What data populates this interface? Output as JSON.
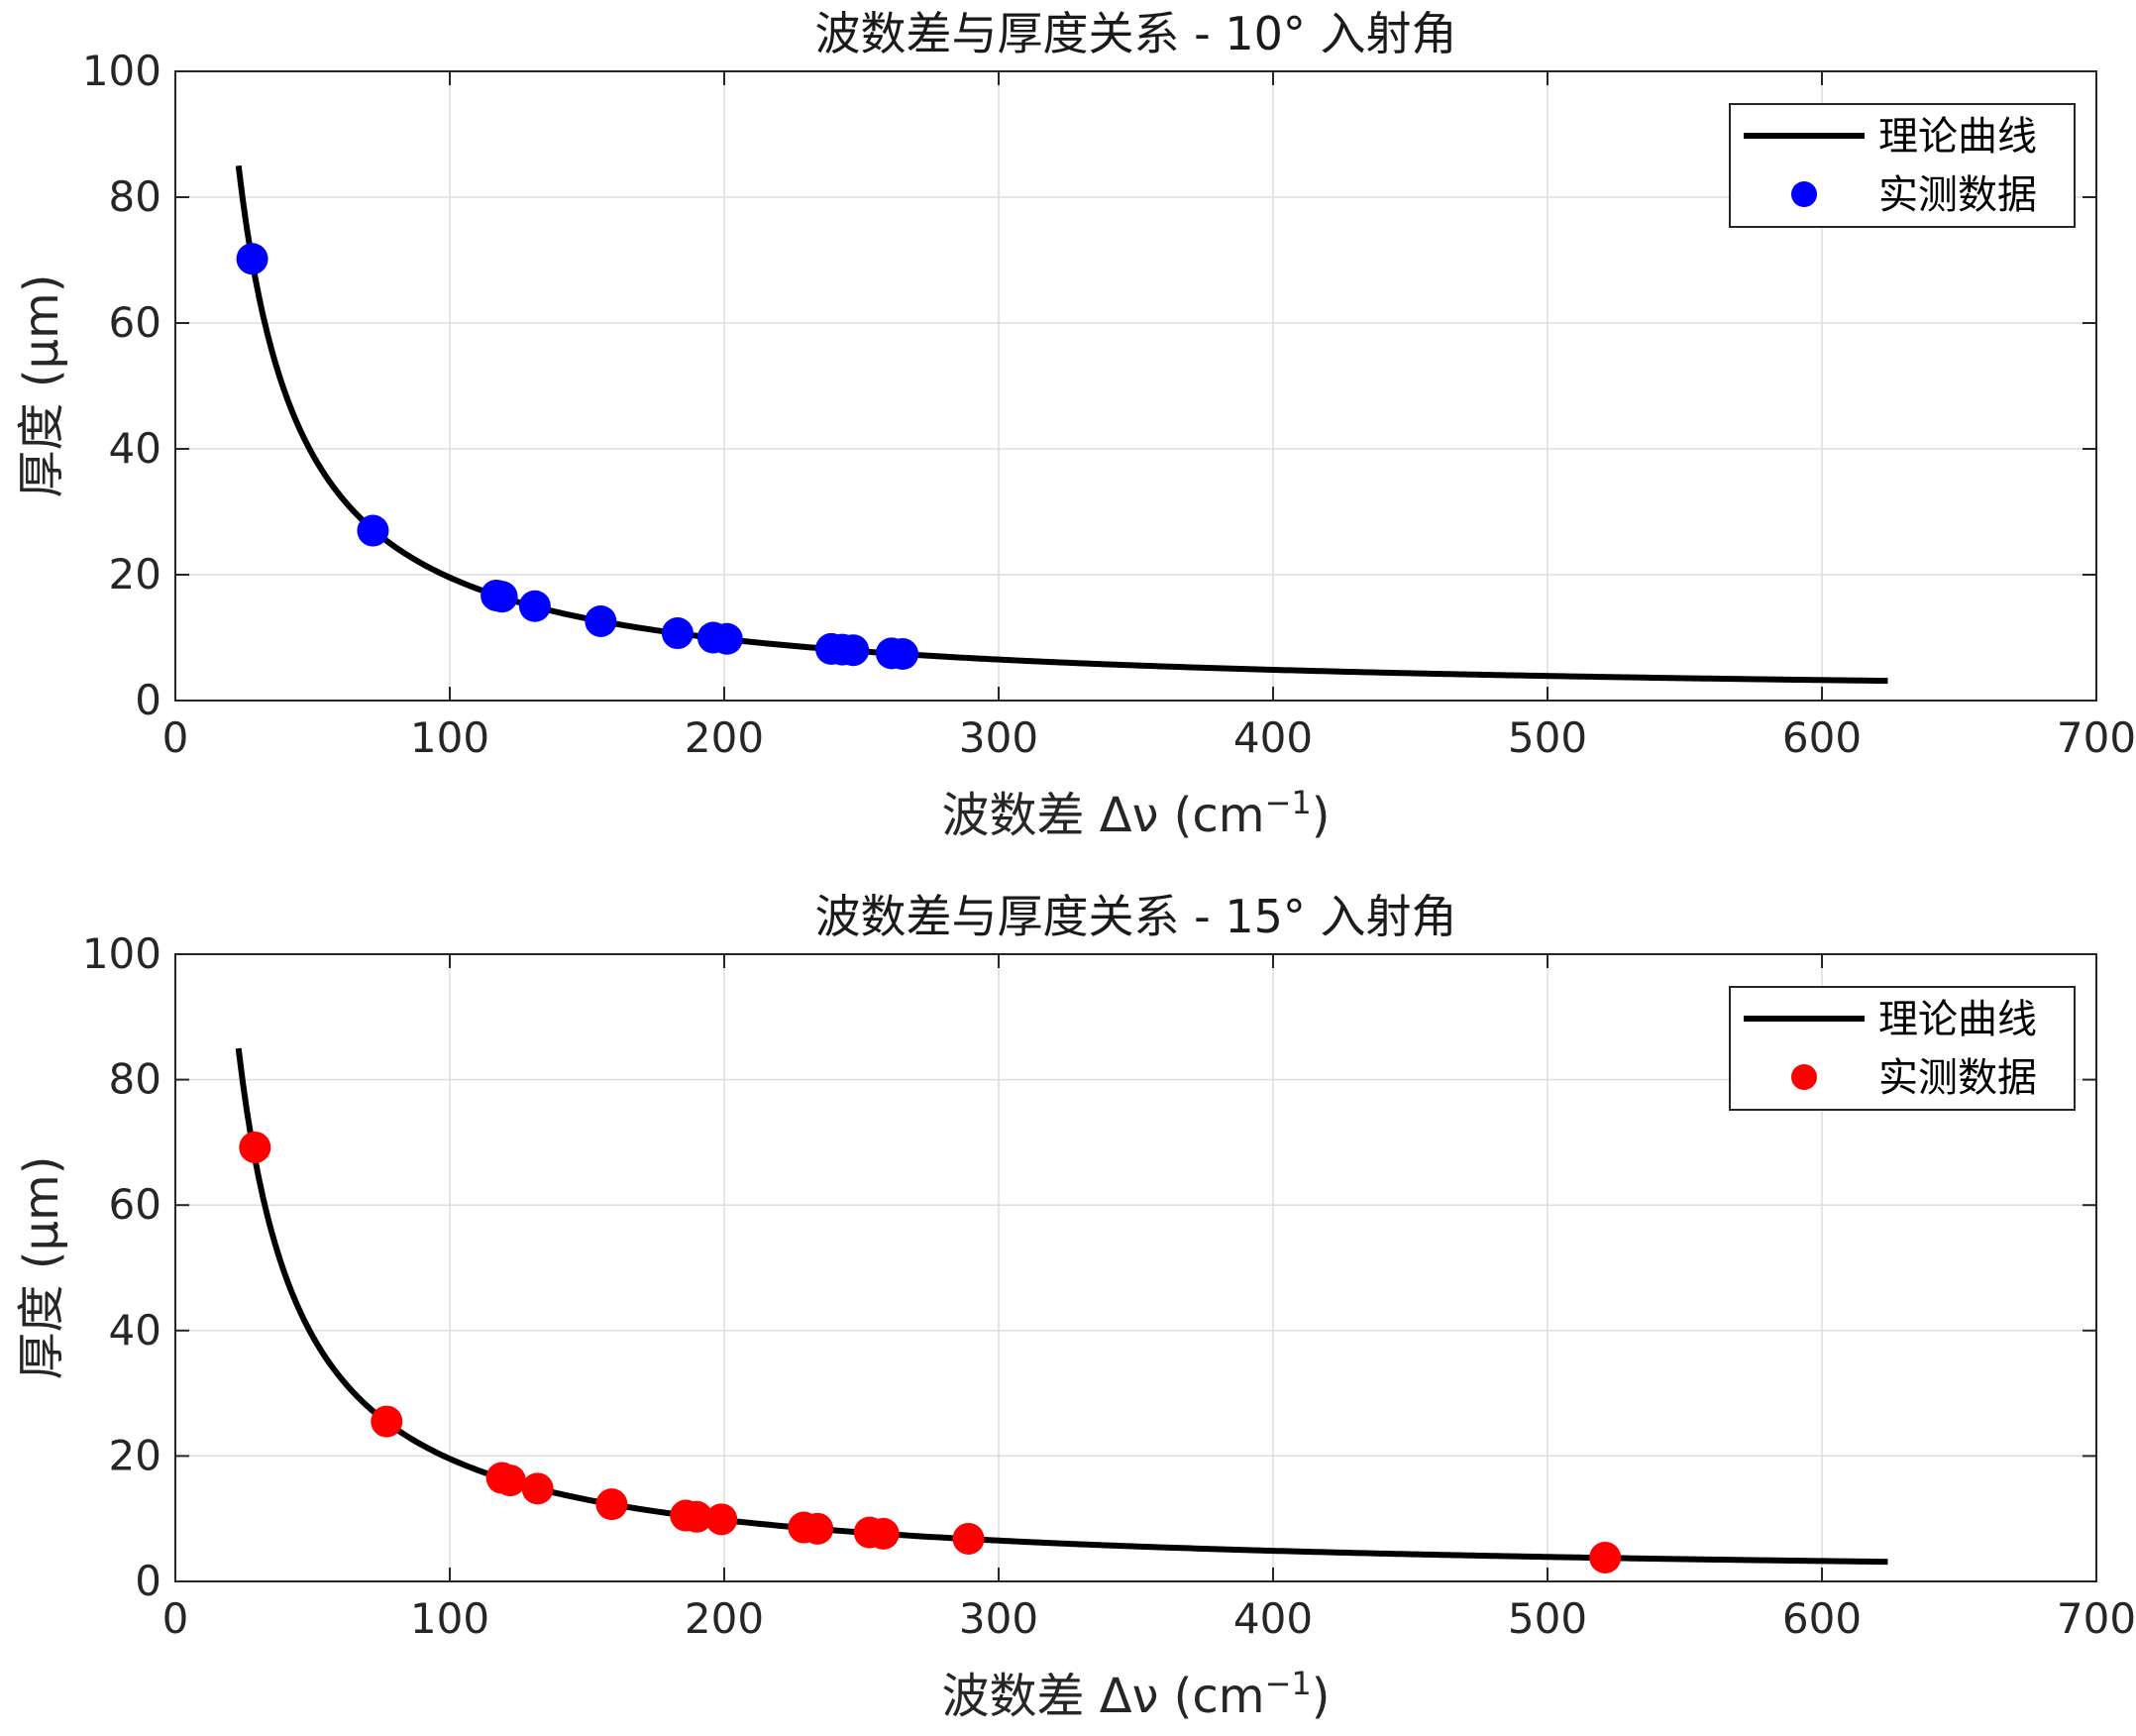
{
  "chart_data": [
    {
      "type": "line+scatter",
      "title": "波数差与厚度关系 - 10° 入射角",
      "xlabel": "波数差 Δν (cm",
      "xlabel_sup": "−1",
      "xlabel_close": ")",
      "ylabel": "厚度 (μm)",
      "xlim": [
        0,
        700
      ],
      "ylim": [
        0,
        100
      ],
      "xticks": [
        0,
        100,
        200,
        300,
        400,
        500,
        600,
        700
      ],
      "yticks": [
        0,
        20,
        40,
        60,
        80,
        100
      ],
      "grid": true,
      "legend": {
        "position": "top-right",
        "entries": [
          "理论曲线",
          "实测数据"
        ]
      },
      "curve": {
        "name": "理论曲线",
        "color": "#000000",
        "x_range": [
          23,
          624
        ],
        "k": 1955
      },
      "series": [
        {
          "name": "实测数据",
          "color": "#0000ff",
          "x": [
            28,
            72,
            117,
            119,
            131,
            155,
            183,
            196,
            201,
            239,
            243,
            247,
            261,
            265
          ],
          "y": [
            70.2,
            27.0,
            16.7,
            16.5,
            15.0,
            12.6,
            10.7,
            10.0,
            9.8,
            8.2,
            8.1,
            8.0,
            7.5,
            7.4
          ]
        }
      ]
    },
    {
      "type": "line+scatter",
      "title": "波数差与厚度关系 - 15° 入射角",
      "xlabel": "波数差 Δν (cm",
      "xlabel_sup": "−1",
      "xlabel_close": ")",
      "ylabel": "厚度 (μm)",
      "xlim": [
        0,
        700
      ],
      "ylim": [
        0,
        100
      ],
      "xticks": [
        0,
        100,
        200,
        300,
        400,
        500,
        600,
        700
      ],
      "yticks": [
        0,
        20,
        40,
        60,
        80,
        100
      ],
      "grid": true,
      "legend": {
        "position": "top-right",
        "entries": [
          "理论曲线",
          "实测数据"
        ]
      },
      "curve": {
        "name": "理论曲线",
        "color": "#000000",
        "x_range": [
          23,
          624
        ],
        "k": 1955
      },
      "series": [
        {
          "name": "实测数据",
          "color": "#ff0000",
          "x": [
            29,
            77,
            119,
            122,
            132,
            159,
            186,
            190,
            199,
            229,
            234,
            253,
            258,
            289,
            521
          ],
          "y": [
            69.2,
            25.5,
            16.5,
            16.1,
            14.8,
            12.3,
            10.5,
            10.3,
            9.9,
            8.6,
            8.4,
            7.8,
            7.6,
            6.8,
            3.8
          ]
        }
      ]
    }
  ]
}
